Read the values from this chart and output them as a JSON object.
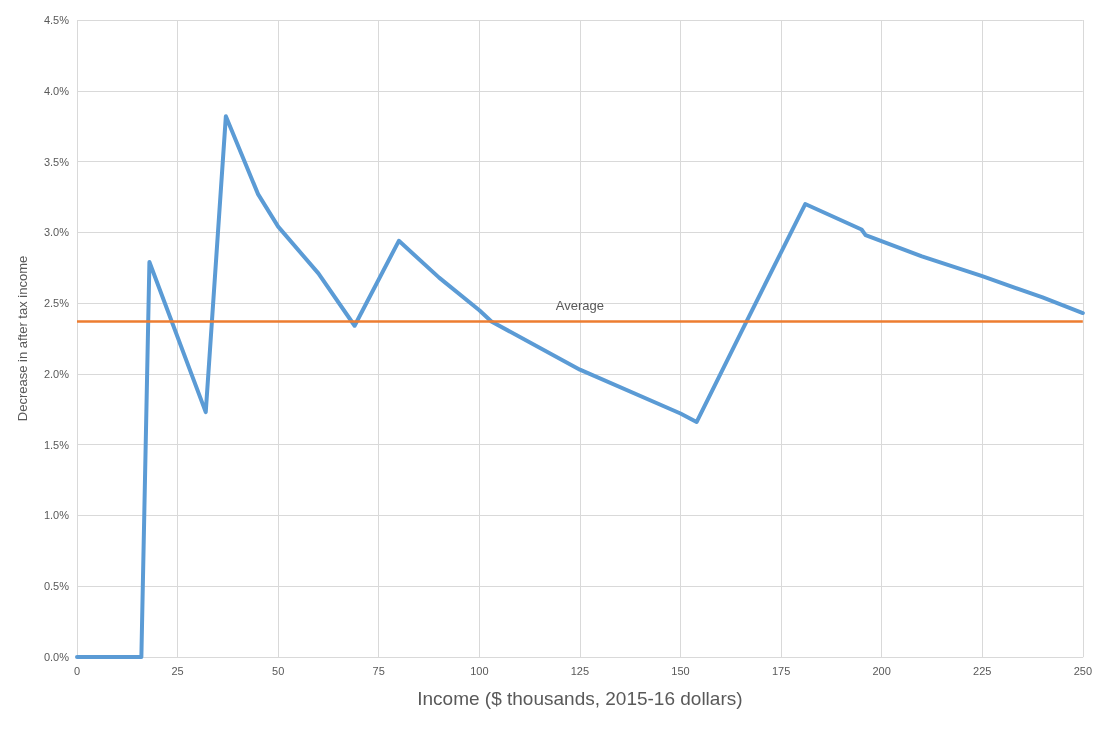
{
  "chart_data": {
    "type": "line",
    "xlabel": "Income ($ thousands, 2015-16 dollars)",
    "ylabel": "Decrease in after tax income",
    "x": [
      0,
      16,
      18,
      32,
      37,
      45,
      50,
      60,
      69,
      80,
      90,
      100,
      103,
      125,
      150,
      154,
      165,
      181,
      195,
      196,
      210,
      225,
      240,
      250
    ],
    "series": [
      {
        "color": "#5b9bd5",
        "values": [
          0,
          0,
          2.79,
          1.73,
          3.82,
          3.27,
          3.04,
          2.71,
          2.34,
          2.94,
          2.68,
          2.45,
          2.37,
          2.03,
          1.72,
          1.66,
          2.29,
          3.2,
          3.02,
          2.98,
          2.83,
          2.69,
          2.54,
          2.43
        ]
      }
    ],
    "xlim": [
      0,
      250
    ],
    "xticks": [
      0,
      25,
      50,
      75,
      100,
      125,
      150,
      175,
      200,
      225,
      250
    ],
    "ylim": [
      0,
      4.5
    ],
    "yticks": [
      {
        "value": 0,
        "label": "0.0%"
      },
      {
        "value": 0.5,
        "label": "0.5%"
      },
      {
        "value": 1,
        "label": "1.0%"
      },
      {
        "value": 1.5,
        "label": "1.5%"
      },
      {
        "value": 2,
        "label": "2.0%"
      },
      {
        "value": 2.5,
        "label": "2.5%"
      },
      {
        "value": 3,
        "label": "3.0%"
      },
      {
        "value": 3.5,
        "label": "3.5%"
      },
      {
        "value": 4,
        "label": "4.0%"
      },
      {
        "value": 4.5,
        "label": "4.5%"
      }
    ],
    "ref_lines": [
      {
        "axis": "y",
        "value": 2.37,
        "label": "Average",
        "color": "#ed7d31"
      }
    ],
    "grid": true,
    "marker": "none",
    "line_style": "solid"
  }
}
